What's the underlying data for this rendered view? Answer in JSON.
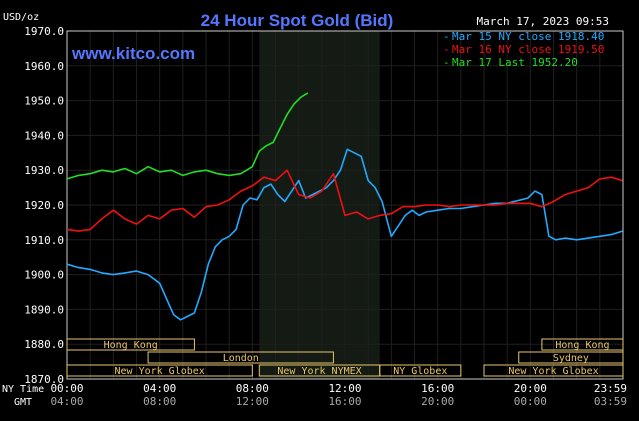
{
  "header": {
    "unit": "USD/oz",
    "title": "24 Hour Spot Gold (Bid)",
    "date": "March 17, 2023 09:53",
    "site": "www.kitco.com"
  },
  "colors": {
    "background": "#000000",
    "plot": "#000000",
    "grid": "#1f1f1f",
    "shade": "#141a14",
    "title": "#5577ff",
    "cyan": "#22aaff",
    "red": "#ee1111",
    "green": "#22dd22",
    "white": "#ffffff",
    "session": "#e8c66a"
  },
  "legend": [
    {
      "text": "Mar 15 NY close 1918.40",
      "color": "#22aaff"
    },
    {
      "text": "Mar 16 NY close 1919.50",
      "color": "#ee1111"
    },
    {
      "text": "Mar 17 Last 1952.20",
      "color": "#22dd22"
    }
  ],
  "sessions": {
    "top": [
      {
        "label": "Hong Kong",
        "start": 0,
        "end": 5.5
      },
      {
        "label": "Hong Kong",
        "start": 20.5,
        "end": 24
      }
    ],
    "mid": [
      {
        "label": "London",
        "start": 3.5,
        "end": 11.5
      },
      {
        "label": "Sydney",
        "start": 19.5,
        "end": 24
      }
    ],
    "bottom": [
      {
        "label": "New York Globex",
        "start": 0,
        "end": 8
      },
      {
        "label": "New York NYMEX",
        "start": 8.3,
        "end": 13.5
      },
      {
        "label": "NY Globex",
        "start": 13.5,
        "end": 17
      },
      {
        "label": "New York Globex",
        "start": 18,
        "end": 24
      }
    ]
  },
  "axis_titles": {
    "ny": "NY Time",
    "gmt": "GMT"
  },
  "gmt_labels": [
    "04:00",
    "08:00",
    "12:00",
    "16:00",
    "20:00",
    "00:00",
    "03:59"
  ],
  "chart_data": {
    "type": "line",
    "title": "24 Hour Spot Gold (Bid)",
    "ylabel": "USD/oz",
    "ylim": [
      1870,
      1970
    ],
    "yticks": [
      1870,
      1880,
      1890,
      1900,
      1910,
      1920,
      1930,
      1940,
      1950,
      1960,
      1970
    ],
    "ytick_labels": [
      "1870.0",
      "1880.0",
      "1890.0",
      "1900.0",
      "1910.0",
      "1920.0",
      "1930.0",
      "1940.0",
      "1950.0",
      "1960.0",
      "1970.0"
    ],
    "xlim": [
      0,
      24
    ],
    "xticks": [
      0,
      4,
      8,
      12,
      16,
      20,
      24
    ],
    "xtick_labels": [
      "00:00",
      "04:00",
      "08:00",
      "12:00",
      "16:00",
      "20:00",
      "23:59"
    ],
    "shaded_range": [
      8.3,
      13.5
    ],
    "grid": true,
    "legend_position": "top-right",
    "series": [
      {
        "name": "Mar 15 NY close 1918.40",
        "color": "#22aaff",
        "x": [
          0,
          0.5,
          1,
          1.5,
          2,
          2.5,
          3,
          3.5,
          4,
          4.3,
          4.6,
          4.9,
          5.2,
          5.5,
          5.8,
          6.1,
          6.4,
          6.7,
          7,
          7.3,
          7.6,
          7.9,
          8.2,
          8.5,
          8.8,
          9.1,
          9.4,
          9.7,
          10,
          10.3,
          10.6,
          10.9,
          11.2,
          11.5,
          11.8,
          12.1,
          12.4,
          12.7,
          13,
          13.3,
          13.6,
          14,
          14.3,
          14.6,
          14.9,
          15.2,
          15.5,
          16,
          16.5,
          17,
          17.5,
          18,
          18.5,
          19,
          19.3,
          19.6,
          19.9,
          20.2,
          20.5,
          20.8,
          21.1,
          21.5,
          22,
          22.5,
          23,
          23.5,
          23.98
        ],
        "y": [
          1903,
          1902,
          1901.5,
          1900.5,
          1900,
          1900.5,
          1901,
          1900,
          1897.5,
          1893,
          1888.5,
          1887,
          1888,
          1889,
          1895,
          1903,
          1908,
          1910,
          1911,
          1913,
          1920,
          1922,
          1921.5,
          1925,
          1926,
          1923,
          1921,
          1924,
          1927,
          1922,
          1923,
          1924,
          1925,
          1927,
          1930,
          1936,
          1935,
          1934,
          1927,
          1925,
          1921,
          1911,
          1914,
          1917,
          1918.5,
          1917,
          1918,
          1918.5,
          1919,
          1919,
          1919.5,
          1920,
          1920.5,
          1920.5,
          1921,
          1921.5,
          1922,
          1924,
          1923,
          1911,
          1910,
          1910.5,
          1910,
          1910.5,
          1911,
          1911.5,
          1912.5
        ]
      },
      {
        "name": "Mar 16 NY close 1919.50",
        "color": "#ee1111",
        "x": [
          0,
          0.5,
          1,
          1.5,
          2,
          2.5,
          3,
          3.5,
          4,
          4.5,
          5,
          5.5,
          6,
          6.5,
          7,
          7.5,
          8,
          8.5,
          9,
          9.5,
          10,
          10.5,
          11,
          11.5,
          12,
          12.5,
          13,
          13.5,
          14,
          14.5,
          15,
          15.5,
          16,
          16.5,
          17,
          17.5,
          18,
          18.5,
          19,
          19.5,
          20,
          20.5,
          21,
          21.5,
          22,
          22.5,
          23,
          23.5,
          23.98
        ],
        "y": [
          1913,
          1912.5,
          1913,
          1916,
          1918.5,
          1916,
          1914.5,
          1917,
          1916,
          1918.5,
          1919,
          1916.5,
          1919.5,
          1920,
          1921.5,
          1924,
          1925.5,
          1928,
          1927,
          1930,
          1923,
          1922,
          1924,
          1929,
          1917,
          1918,
          1916,
          1917,
          1917.5,
          1919.5,
          1919.5,
          1920,
          1920,
          1919.5,
          1920,
          1920,
          1920,
          1920,
          1920.5,
          1920.5,
          1920.5,
          1919.5,
          1921,
          1923,
          1924,
          1925,
          1927.5,
          1928,
          1927
        ]
      },
      {
        "name": "Mar 17 Last 1952.20",
        "color": "#22dd22",
        "x": [
          0,
          0.5,
          1,
          1.5,
          2,
          2.5,
          3,
          3.5,
          4,
          4.5,
          5,
          5.5,
          6,
          6.5,
          7,
          7.5,
          8,
          8.3,
          8.6,
          8.9,
          9.2,
          9.5,
          9.8,
          10.1,
          10.4
        ],
        "y": [
          1927.5,
          1928.5,
          1929,
          1930,
          1929.5,
          1930.5,
          1929,
          1931,
          1929.5,
          1930,
          1928.5,
          1929.5,
          1930,
          1929,
          1928.5,
          1929,
          1931,
          1935.5,
          1937,
          1938,
          1942,
          1946,
          1949,
          1951,
          1952.2
        ]
      }
    ]
  }
}
